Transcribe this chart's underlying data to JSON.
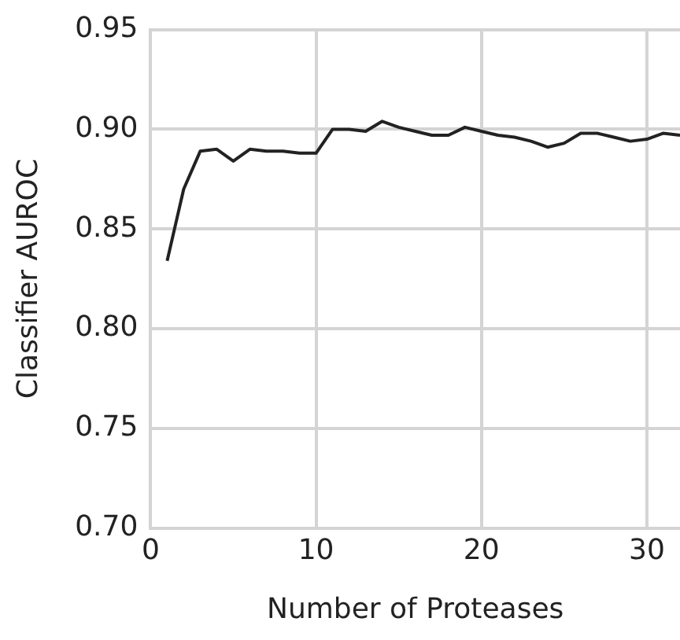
{
  "chart_data": {
    "type": "line",
    "xlabel": "Number of Proteases",
    "ylabel": "Classifier AUROC",
    "x": [
      1,
      2,
      3,
      4,
      5,
      6,
      7,
      8,
      9,
      10,
      11,
      12,
      13,
      14,
      15,
      16,
      17,
      18,
      19,
      20,
      21,
      22,
      23,
      24,
      25,
      26,
      27,
      28,
      29,
      30,
      31,
      32
    ],
    "series": [
      {
        "color": "#222222",
        "values": [
          0.834,
          0.87,
          0.889,
          0.89,
          0.884,
          0.89,
          0.889,
          0.889,
          0.888,
          0.888,
          0.9,
          0.9,
          0.899,
          0.904,
          0.901,
          0.899,
          0.897,
          0.897,
          0.901,
          0.899,
          0.897,
          0.896,
          0.894,
          0.891,
          0.893,
          0.898,
          0.898,
          0.896,
          0.894,
          0.895,
          0.898,
          0.897
        ]
      }
    ],
    "xlim": [
      0,
      32
    ],
    "xticks": [
      0,
      10,
      20,
      30
    ],
    "ylim": [
      0.7,
      0.95
    ],
    "yticks": [
      {
        "value": 0.7,
        "label": "0.70"
      },
      0.75,
      {
        "value": 0.8,
        "label": "0.80"
      },
      0.85,
      {
        "value": 0.9,
        "label": "0.90"
      },
      0.95
    ],
    "grid": true,
    "legend": false,
    "marker": "none",
    "line_style": "solid"
  }
}
